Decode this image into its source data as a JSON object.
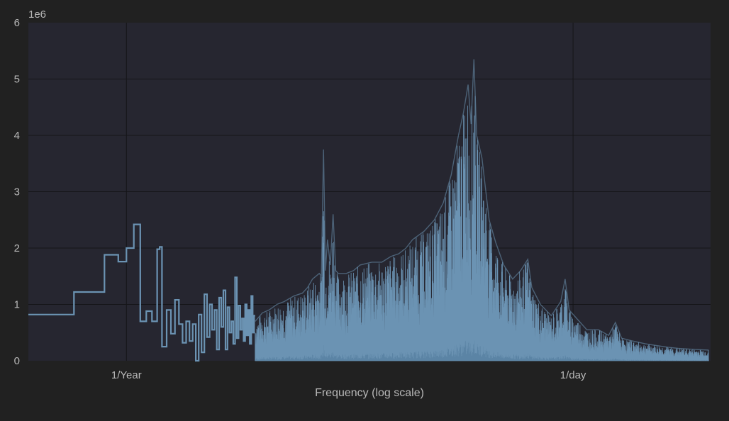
{
  "chart_data": {
    "type": "line",
    "title": "",
    "xlabel": "Frequency (log scale)",
    "ylabel": "",
    "x_scale": "log",
    "x_tick_labels": [
      "1/Year",
      "1/day"
    ],
    "y_ticks": [
      0,
      1,
      2,
      3,
      4,
      5,
      6
    ],
    "y_multiplier": "1e6",
    "ylim": [
      0,
      6
    ],
    "grid": true,
    "colors": {
      "background": "#212121",
      "plot_area": "#262630",
      "grid": "#151518",
      "text": "#b8b8b8",
      "series": "#6b93b3",
      "fill": "#5b84a5"
    },
    "series": [
      {
        "name": "",
        "style": "step",
        "x_unit": "cycles per day",
        "points": [
          [
            0.00075,
            0.82
          ],
          [
            0.00137,
            1.22
          ],
          [
            0.00205,
            1.88
          ],
          [
            0.00246,
            1.76
          ],
          [
            0.00274,
            2.0
          ],
          [
            0.00302,
            2.42
          ],
          [
            0.00329,
            0.7
          ],
          [
            0.00356,
            0.88
          ],
          [
            0.00384,
            0.7
          ],
          [
            0.00411,
            1.98
          ],
          [
            0.00425,
            2.02
          ],
          [
            0.00438,
            0.25
          ],
          [
            0.00466,
            0.9
          ],
          [
            0.00493,
            0.48
          ],
          [
            0.0052,
            1.08
          ],
          [
            0.00548,
            0.65
          ],
          [
            0.00575,
            0.32
          ],
          [
            0.00603,
            0.7
          ],
          [
            0.0063,
            0.35
          ],
          [
            0.00657,
            0.65
          ],
          [
            0.00685,
            0.0
          ],
          [
            0.00712,
            0.82
          ],
          [
            0.00739,
            0.15
          ],
          [
            0.00767,
            1.18
          ],
          [
            0.00794,
            0.42
          ],
          [
            0.00822,
            1.0
          ],
          [
            0.00849,
            0.55
          ],
          [
            0.00877,
            0.9
          ],
          [
            0.00904,
            0.2
          ],
          [
            0.00932,
            1.12
          ],
          [
            0.00959,
            0.6
          ],
          [
            0.00986,
            1.25
          ],
          [
            0.01014,
            0.2
          ],
          [
            0.01041,
            0.95
          ],
          [
            0.01068,
            0.5
          ],
          [
            0.01096,
            0.7
          ],
          [
            0.01123,
            0.3
          ],
          [
            0.01151,
            1.48
          ],
          [
            0.01178,
            0.4
          ],
          [
            0.01205,
            0.98
          ],
          [
            0.01233,
            0.55
          ],
          [
            0.0126,
            0.75
          ],
          [
            0.01288,
            0.35
          ],
          [
            0.01315,
            1.0
          ],
          [
            0.01342,
            0.45
          ],
          [
            0.0137,
            0.9
          ],
          [
            0.01397,
            0.3
          ],
          [
            0.01425,
            1.15
          ],
          [
            0.01452,
            0.5
          ],
          [
            0.01479,
            0.8
          ]
        ]
      },
      {
        "name": "",
        "style": "dense-fill",
        "x_unit": "cycles per day",
        "points": [
          [
            0.015,
            0.7
          ],
          [
            0.0165,
            0.85
          ],
          [
            0.018,
            0.9
          ],
          [
            0.02,
            1.0
          ],
          [
            0.022,
            1.05
          ],
          [
            0.025,
            1.15
          ],
          [
            0.028,
            1.2
          ],
          [
            0.03,
            1.3
          ],
          [
            0.032,
            1.45
          ],
          [
            0.035,
            1.55
          ],
          [
            0.036,
            1.5
          ],
          [
            0.037,
            3.75
          ],
          [
            0.038,
            1.6
          ],
          [
            0.039,
            2.15
          ],
          [
            0.0405,
            1.7
          ],
          [
            0.042,
            2.6
          ],
          [
            0.0435,
            1.6
          ],
          [
            0.045,
            1.55
          ],
          [
            0.05,
            1.55
          ],
          [
            0.055,
            1.6
          ],
          [
            0.06,
            1.7
          ],
          [
            0.07,
            1.75
          ],
          [
            0.08,
            1.75
          ],
          [
            0.09,
            1.85
          ],
          [
            0.1,
            1.9
          ],
          [
            0.11,
            2.0
          ],
          [
            0.12,
            2.15
          ],
          [
            0.14,
            2.3
          ],
          [
            0.16,
            2.5
          ],
          [
            0.18,
            2.8
          ],
          [
            0.2,
            3.3
          ],
          [
            0.22,
            4.0
          ],
          [
            0.235,
            4.4
          ],
          [
            0.25,
            4.9
          ],
          [
            0.26,
            4.2
          ],
          [
            0.27,
            5.35
          ],
          [
            0.28,
            4.0
          ],
          [
            0.3,
            3.6
          ],
          [
            0.33,
            2.5
          ],
          [
            0.36,
            2.1
          ],
          [
            0.4,
            1.7
          ],
          [
            0.45,
            1.45
          ],
          [
            0.5,
            1.6
          ],
          [
            0.55,
            1.8
          ],
          [
            0.58,
            1.3
          ],
          [
            0.65,
            1.0
          ],
          [
            0.75,
            0.8
          ],
          [
            0.85,
            1.05
          ],
          [
            0.9,
            1.45
          ],
          [
            0.95,
            0.9
          ],
          [
            1.05,
            0.75
          ],
          [
            1.2,
            0.55
          ],
          [
            1.4,
            0.55
          ],
          [
            1.6,
            0.45
          ],
          [
            1.75,
            0.68
          ],
          [
            1.9,
            0.4
          ],
          [
            2.2,
            0.35
          ],
          [
            2.6,
            0.3
          ],
          [
            3.0,
            0.27
          ],
          [
            3.5,
            0.24
          ],
          [
            4.0,
            0.22
          ],
          [
            5.0,
            0.2
          ],
          [
            6.0,
            0.19
          ]
        ]
      }
    ]
  }
}
